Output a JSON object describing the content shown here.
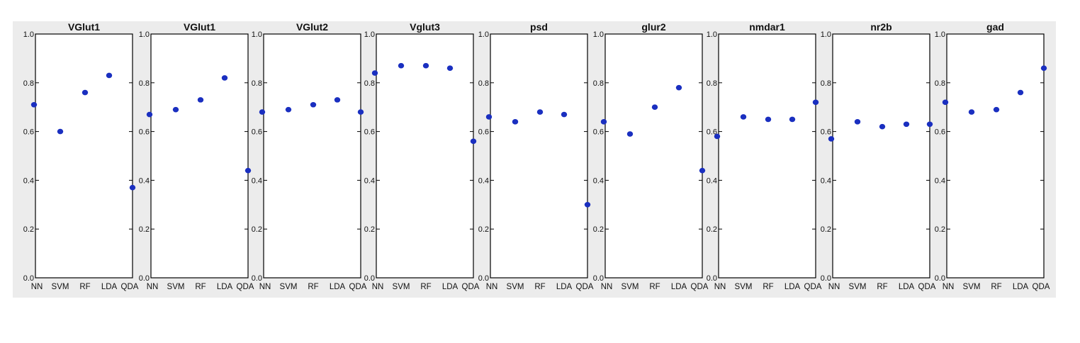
{
  "chart_data": [
    {
      "type": "scatter",
      "title": "VGlut1",
      "categories": [
        "NN",
        "SVM",
        "RF",
        "LDA",
        "QDA"
      ],
      "values": [
        0.71,
        0.6,
        0.76,
        0.83,
        0.37
      ],
      "ylim": [
        0,
        1
      ],
      "yticks": [
        "0.0",
        "0.2",
        "0.4",
        "0.6",
        "0.8",
        "1.0"
      ]
    },
    {
      "type": "scatter",
      "title": "VGlut1",
      "categories": [
        "NN",
        "SVM",
        "RF",
        "LDA",
        "QDA"
      ],
      "values": [
        0.67,
        0.69,
        0.73,
        0.82,
        0.44
      ],
      "ylim": [
        0,
        1
      ],
      "yticks": [
        "0.0",
        "0.2",
        "0.4",
        "0.6",
        "0.8",
        "1.0"
      ]
    },
    {
      "type": "scatter",
      "title": "VGlut2",
      "categories": [
        "NN",
        "SVM",
        "RF",
        "LDA",
        "QDA"
      ],
      "values": [
        0.68,
        0.69,
        0.71,
        0.73,
        0.68
      ],
      "ylim": [
        0,
        1
      ],
      "yticks": [
        "0.0",
        "0.2",
        "0.4",
        "0.6",
        "0.8",
        "1.0"
      ]
    },
    {
      "type": "scatter",
      "title": "Vglut3",
      "categories": [
        "NN",
        "SVM",
        "RF",
        "LDA",
        "QDA"
      ],
      "values": [
        0.84,
        0.87,
        0.87,
        0.86,
        0.56
      ],
      "ylim": [
        0,
        1
      ],
      "yticks": [
        "0.0",
        "0.2",
        "0.4",
        "0.6",
        "0.8",
        "1.0"
      ]
    },
    {
      "type": "scatter",
      "title": "psd",
      "categories": [
        "NN",
        "SVM",
        "RF",
        "LDA",
        "QDA"
      ],
      "values": [
        0.66,
        0.64,
        0.68,
        0.67,
        0.3
      ],
      "ylim": [
        0,
        1
      ],
      "yticks": [
        "0.0",
        "0.2",
        "0.4",
        "0.6",
        "0.8",
        "1.0"
      ]
    },
    {
      "type": "scatter",
      "title": "glur2",
      "categories": [
        "NN",
        "SVM",
        "RF",
        "LDA",
        "QDA"
      ],
      "values": [
        0.64,
        0.59,
        0.7,
        0.78,
        0.44
      ],
      "ylim": [
        0,
        1
      ],
      "yticks": [
        "0.0",
        "0.2",
        "0.4",
        "0.6",
        "0.8",
        "1.0"
      ]
    },
    {
      "type": "scatter",
      "title": "nmdar1",
      "categories": [
        "NN",
        "SVM",
        "RF",
        "LDA",
        "QDA"
      ],
      "values": [
        0.58,
        0.66,
        0.65,
        0.65,
        0.72
      ],
      "ylim": [
        0,
        1
      ],
      "yticks": [
        "0.0",
        "0.2",
        "0.4",
        "0.6",
        "0.8",
        "1.0"
      ]
    },
    {
      "type": "scatter",
      "title": "nr2b",
      "categories": [
        "NN",
        "SVM",
        "RF",
        "LDA",
        "QDA"
      ],
      "values": [
        0.57,
        0.64,
        0.62,
        0.63,
        0.63
      ],
      "ylim": [
        0,
        1
      ],
      "yticks": [
        "0.0",
        "0.2",
        "0.4",
        "0.6",
        "0.8",
        "1.0"
      ]
    },
    {
      "type": "scatter",
      "title": "gad",
      "categories": [
        "NN",
        "SVM",
        "RF",
        "LDA",
        "QDA"
      ],
      "values": [
        0.72,
        0.68,
        0.69,
        0.76,
        0.86
      ],
      "ylim": [
        0,
        1
      ],
      "yticks": [
        "0.0",
        "0.2",
        "0.4",
        "0.6",
        "0.8",
        "1.0"
      ]
    }
  ],
  "colors": {
    "marker": "#1a2fc0",
    "frame": "#000000",
    "panel": "#ffffff",
    "strip": "#ececec"
  }
}
